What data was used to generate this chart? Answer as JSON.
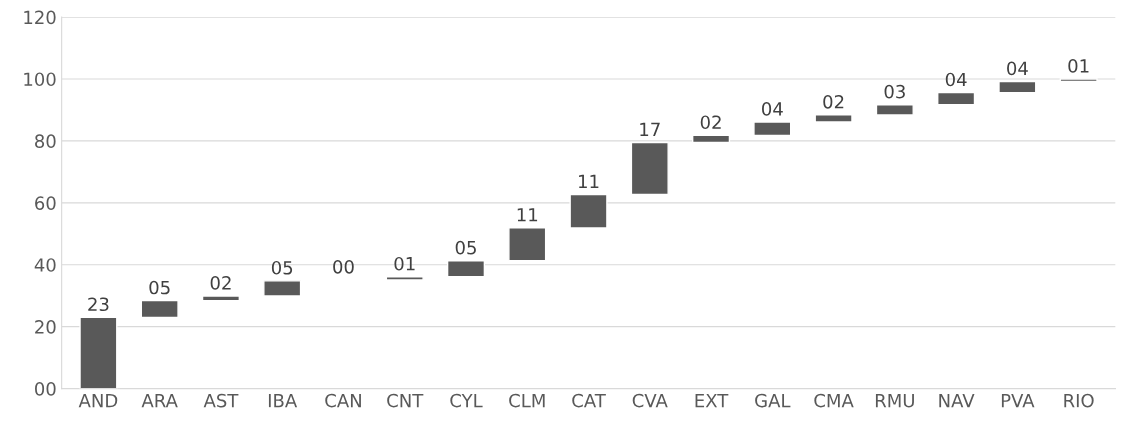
{
  "chart_data": {
    "type": "bar",
    "categories": [
      "AND",
      "ARA",
      "AST",
      "IBA",
      "CAN",
      "CNT",
      "CYL",
      "CLM",
      "CAT",
      "CVA",
      "EXT",
      "GAL",
      "CMA",
      "RMU",
      "NAV",
      "PVA",
      "RIO"
    ],
    "base": [
      0,
      23,
      28.4,
      29.9,
      34.8,
      35.1,
      36.1,
      41.3,
      51.9,
      62.7,
      79.5,
      81.8,
      86.1,
      88.4,
      91.7,
      95.6,
      99.2
    ],
    "values": [
      23,
      5.4,
      1.5,
      4.9,
      0.3,
      1.0,
      5.2,
      10.6,
      10.8,
      16.8,
      2.3,
      4.3,
      2.3,
      3.3,
      3.9,
      3.6,
      0.8
    ],
    "value_labels": [
      "23",
      "05",
      "02",
      "05",
      "00",
      "01",
      "05",
      "11",
      "11",
      "17",
      "02",
      "04",
      "02",
      "03",
      "04",
      "04",
      "01"
    ],
    "color": "#595959",
    "ylim": [
      0,
      120
    ],
    "yticks": [
      {
        "value": 0,
        "label": "00"
      },
      20,
      40,
      60,
      80,
      100,
      120
    ],
    "grid": "y",
    "legend": false
  }
}
